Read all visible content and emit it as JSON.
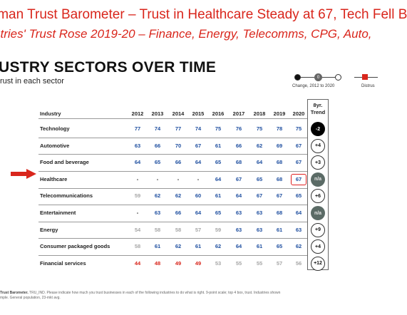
{
  "headline1": "lman Trust Barometer – Trust in Healthcare Steady at 67, Tech Fell B",
  "headline2": "stries' Trust Rose 2019-20 – Finance, Energy, Telecomms, CPG, Auto,",
  "title": "USTRY SECTORS OVER TIME",
  "subtitle": "rust in each sector",
  "legend": {
    "change_label": "Change, 2012 to 2020",
    "change_mid": "0",
    "distrust_label": "Distrus"
  },
  "chart_data": {
    "type": "table",
    "row_header": "Industry",
    "trend_header": [
      "8yr.",
      "Trend"
    ],
    "years": [
      "2012",
      "2013",
      "2014",
      "2015",
      "2016",
      "2017",
      "2018",
      "2019",
      "2020"
    ],
    "rows": [
      {
        "label": "Technology",
        "values": [
          "77",
          "74",
          "77",
          "74",
          "75",
          "76",
          "75",
          "78",
          "75"
        ],
        "trend": "-2"
      },
      {
        "label": "Automotive",
        "values": [
          "63",
          "66",
          "70",
          "67",
          "61",
          "66",
          "62",
          "69",
          "67"
        ],
        "trend": "+4"
      },
      {
        "label": "Food and beverage",
        "values": [
          "64",
          "65",
          "66",
          "64",
          "65",
          "68",
          "64",
          "68",
          "67"
        ],
        "trend": "+3"
      },
      {
        "label": "Healthcare",
        "values": [
          "-",
          "-",
          "-",
          "-",
          "64",
          "67",
          "65",
          "68",
          "67"
        ],
        "trend": "n/a"
      },
      {
        "label": "Telecommunications",
        "values": [
          "59",
          "62",
          "62",
          "60",
          "61",
          "64",
          "67",
          "67",
          "65"
        ],
        "trend": "+6"
      },
      {
        "label": "Entertainment",
        "values": [
          "-",
          "63",
          "66",
          "64",
          "65",
          "63",
          "63",
          "68",
          "64"
        ],
        "trend": "n/a"
      },
      {
        "label": "Energy",
        "values": [
          "54",
          "58",
          "58",
          "57",
          "59",
          "63",
          "63",
          "61",
          "63"
        ],
        "trend": "+9"
      },
      {
        "label": "Consumer packaged goods",
        "values": [
          "58",
          "61",
          "62",
          "61",
          "62",
          "64",
          "61",
          "65",
          "62"
        ],
        "trend": "+4"
      },
      {
        "label": "Financial services",
        "values": [
          "44",
          "48",
          "49",
          "49",
          "53",
          "55",
          "55",
          "57",
          "56"
        ],
        "trend": "+12"
      }
    ]
  },
  "footer": {
    "line1_bold": "Trust Barometer.",
    "line1_rest": " TRU_IND. Please indicate how much you trust businesses in each of the following industries to do what is right. 9-point scale; top 4 box, trust. Industries shown",
    "line2": "mple. General population, 23-mkt avg."
  },
  "colors": {
    "headline": "#d9261c",
    "trust": "#1f4fa0",
    "neutral": "#a7a7a7",
    "distrust": "#d9261c",
    "highlight": "#e02020"
  }
}
